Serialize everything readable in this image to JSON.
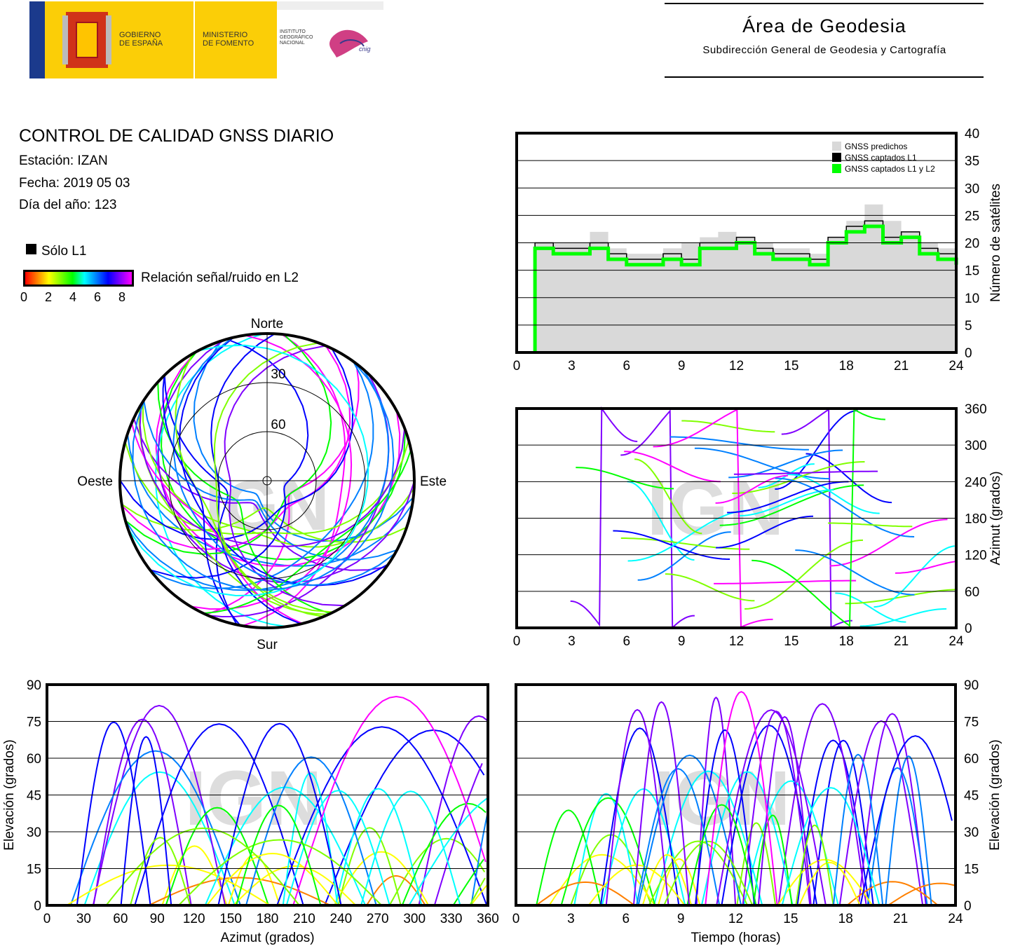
{
  "header": {
    "gobierno": "GOBIERNO\nDE ESPAÑA",
    "ministerio": "MINISTERIO\nDE FOMENTO",
    "instituto": "INSTITUTO\nGEOGRÁFICO\nNACIONAL",
    "cnig": "cnig",
    "area_title": "Área de Geodesia",
    "area_subtitle": "Subdirección General de Geodesia y Cartografía"
  },
  "info": {
    "title": "CONTROL DE CALIDAD GNSS DIARIO",
    "station": "Estación: IZAN",
    "date": "Fecha: 2019 05 03",
    "doy": "Día del año: 123"
  },
  "legend": {
    "solo_l1": "Sólo L1",
    "snr_label": "Relación señal/ruido en L2",
    "snr_ticks": [
      "0",
      "2",
      "4",
      "6",
      "8"
    ],
    "snr_colors": [
      "#ff0000",
      "#ff8000",
      "#ffff00",
      "#80ff00",
      "#00ff00",
      "#00ffff",
      "#0080ff",
      "#0000ff",
      "#8000ff",
      "#ff00ff"
    ]
  },
  "watermark": "IGN",
  "chart_data": [
    {
      "type": "area",
      "id": "satellites",
      "xlabel": "",
      "ylabel": "Número de satélites",
      "xlim": [
        0,
        24
      ],
      "ylim": [
        0,
        40
      ],
      "xticks": [
        "0",
        "3",
        "6",
        "9",
        "12",
        "15",
        "18",
        "21",
        "24"
      ],
      "yticks": [
        "0",
        "5",
        "10",
        "15",
        "20",
        "25",
        "30",
        "35",
        "40"
      ],
      "grid": true,
      "legend_position": "top-right",
      "series": [
        {
          "name": "GNSS predichos",
          "color": "#d9d9d9",
          "x": [
            1,
            2,
            3,
            4,
            5,
            6,
            7,
            8,
            9,
            10,
            11,
            12,
            13,
            14,
            15,
            16,
            17,
            18,
            19,
            20,
            21,
            22,
            23,
            24
          ],
          "values": [
            20,
            20,
            20,
            22,
            19,
            18,
            18,
            19,
            20,
            21,
            22,
            21,
            20,
            19,
            19,
            18,
            21,
            24,
            27,
            24,
            22,
            20,
            19,
            18
          ]
        },
        {
          "name": "GNSS captados L1",
          "color": "#000000",
          "x": [
            1,
            2,
            3,
            4,
            5,
            6,
            7,
            8,
            9,
            10,
            11,
            12,
            13,
            14,
            15,
            16,
            17,
            18,
            19,
            20,
            21,
            22,
            23,
            24
          ],
          "values": [
            20,
            19,
            19,
            20,
            18,
            17,
            17,
            18,
            17,
            20,
            20,
            21,
            19,
            18,
            18,
            17,
            21,
            23,
            24,
            21,
            22,
            19,
            18,
            17
          ]
        },
        {
          "name": "GNSS captados L1 y L2",
          "color": "#00ff00",
          "x": [
            1,
            2,
            3,
            4,
            5,
            6,
            7,
            8,
            9,
            10,
            11,
            12,
            13,
            14,
            15,
            16,
            17,
            18,
            19,
            20,
            21,
            22,
            23,
            24
          ],
          "values": [
            19,
            18,
            18,
            19,
            17,
            16,
            16,
            17,
            16,
            19,
            19,
            20,
            18,
            17,
            17,
            16,
            20,
            22,
            23,
            20,
            21,
            18,
            17,
            16
          ]
        }
      ]
    },
    {
      "type": "scatter",
      "id": "azimuth-time",
      "xlabel": "",
      "ylabel": "Azimut (grados)",
      "xlim": [
        0,
        24
      ],
      "ylim": [
        0,
        360
      ],
      "xticks": [
        "0",
        "3",
        "6",
        "9",
        "12",
        "15",
        "18",
        "21",
        "24"
      ],
      "yticks": [
        "0",
        "60",
        "120",
        "180",
        "240",
        "300",
        "360"
      ],
      "grid": true
    },
    {
      "type": "scatter",
      "id": "skyplot",
      "polar_labels": {
        "north": "Norte",
        "south": "Sur",
        "east": "Este",
        "west": "Oeste"
      },
      "ring_labels": [
        "30",
        "60"
      ]
    },
    {
      "type": "scatter",
      "id": "elevation-azimuth",
      "xlabel": "Azimut (grados)",
      "ylabel": "Elevación (grados)",
      "xlim": [
        0,
        360
      ],
      "ylim": [
        0,
        90
      ],
      "xticks": [
        "0",
        "30",
        "60",
        "90",
        "120",
        "150",
        "180",
        "210",
        "240",
        "270",
        "300",
        "330",
        "360"
      ],
      "yticks": [
        "0",
        "15",
        "30",
        "45",
        "60",
        "75",
        "90"
      ],
      "grid": true
    },
    {
      "type": "scatter",
      "id": "elevation-time",
      "xlabel": "Tiempo (horas)",
      "ylabel": "Elevación (grados)",
      "xlim": [
        0,
        24
      ],
      "ylim": [
        0,
        90
      ],
      "xticks": [
        "0",
        "3",
        "6",
        "9",
        "12",
        "15",
        "18",
        "21",
        "24"
      ],
      "yticks": [
        "0",
        "15",
        "30",
        "45",
        "60",
        "75",
        "90"
      ],
      "grid": true
    }
  ]
}
